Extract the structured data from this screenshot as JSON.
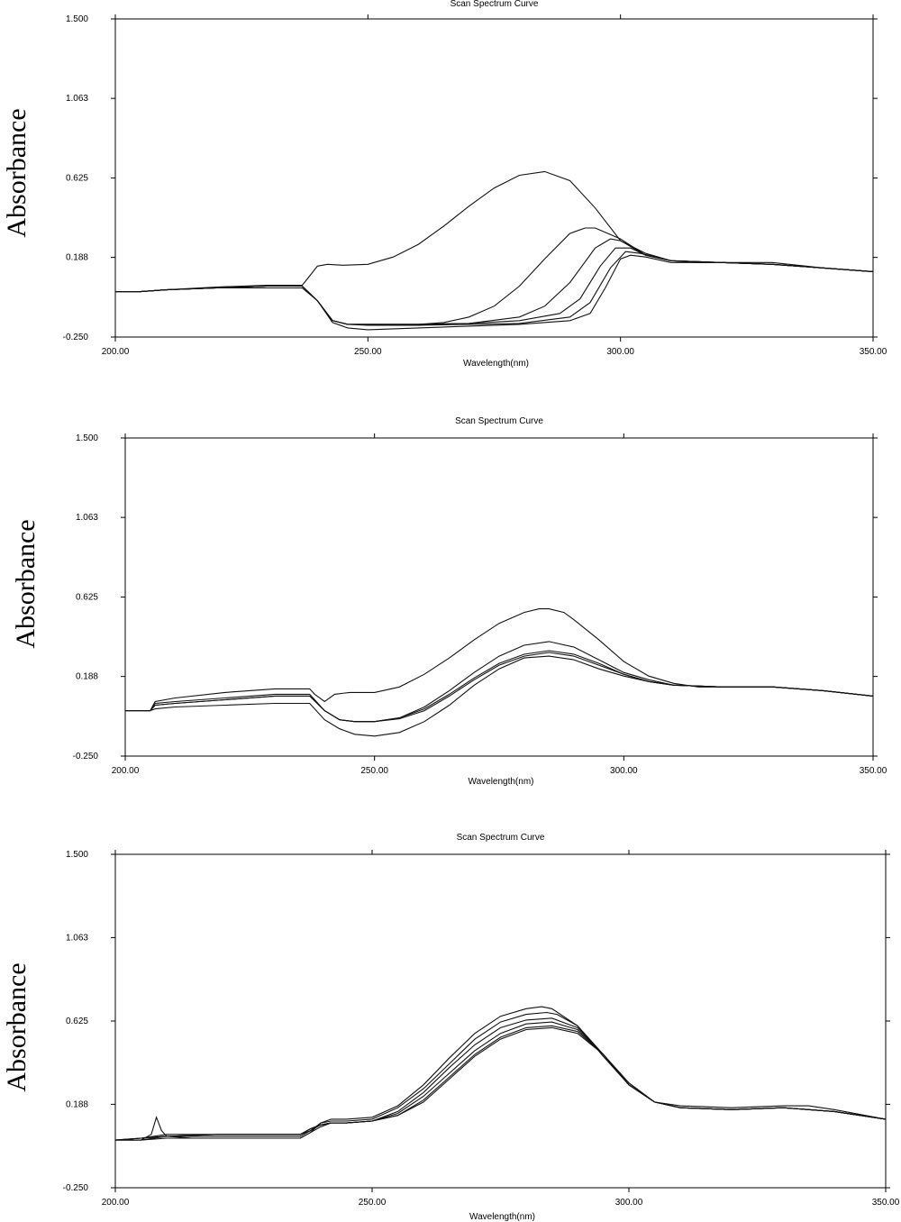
{
  "chart_data": [
    {
      "type": "line",
      "title": "Scan Spectrum Curve",
      "xlabel": "Wavelength(nm)",
      "ylabel": "Absorbance",
      "xlim": [
        200,
        350
      ],
      "ylim": [
        -0.25,
        1.5
      ],
      "xticks": [
        "200.00",
        "250.00",
        "300.00",
        "350.00"
      ],
      "yticks": [
        "1.500",
        "1.063",
        "0.625",
        "0.188",
        "-0.250"
      ],
      "grid": false,
      "series": [
        {
          "x": [
            200,
            205,
            210,
            220,
            230,
            237,
            238,
            240,
            242,
            245,
            250,
            255,
            260,
            265,
            270,
            275,
            280,
            285,
            290,
            295,
            300,
            305,
            310,
            315,
            320,
            330,
            340,
            350
          ],
          "y": [
            0.0,
            0.0,
            0.01,
            0.025,
            0.035,
            0.035,
            0.07,
            0.14,
            0.15,
            0.145,
            0.15,
            0.19,
            0.26,
            0.36,
            0.47,
            0.57,
            0.64,
            0.66,
            0.61,
            0.46,
            0.28,
            0.2,
            0.17,
            0.16,
            0.16,
            0.16,
            0.13,
            0.11
          ]
        },
        {
          "x": [
            200,
            205,
            210,
            220,
            230,
            237,
            240,
            243,
            246,
            250,
            255,
            260,
            265,
            270,
            275,
            280,
            285,
            290,
            293,
            295,
            300,
            305,
            310,
            320,
            330,
            340,
            350
          ],
          "y": [
            0.0,
            0.0,
            0.01,
            0.02,
            0.03,
            0.03,
            -0.05,
            -0.16,
            -0.18,
            -0.18,
            -0.18,
            -0.18,
            -0.17,
            -0.14,
            -0.08,
            0.03,
            0.18,
            0.32,
            0.35,
            0.35,
            0.29,
            0.2,
            0.17,
            0.16,
            0.15,
            0.13,
            0.11
          ]
        },
        {
          "x": [
            200,
            205,
            210,
            220,
            230,
            237,
            240,
            243,
            246,
            250,
            260,
            270,
            280,
            285,
            290,
            295,
            298,
            300,
            305,
            310,
            320,
            330,
            340,
            350
          ],
          "y": [
            0.0,
            0.0,
            0.01,
            0.02,
            0.03,
            0.03,
            -0.05,
            -0.16,
            -0.18,
            -0.18,
            -0.18,
            -0.175,
            -0.14,
            -0.08,
            0.05,
            0.24,
            0.29,
            0.28,
            0.21,
            0.17,
            0.16,
            0.15,
            0.13,
            0.11
          ]
        },
        {
          "x": [
            200,
            205,
            210,
            220,
            230,
            237,
            240,
            243,
            246,
            250,
            260,
            270,
            280,
            288,
            292,
            296,
            299,
            302,
            305,
            310,
            320,
            330,
            340,
            350
          ],
          "y": [
            0.0,
            0.0,
            0.01,
            0.02,
            0.03,
            0.03,
            -0.05,
            -0.16,
            -0.18,
            -0.18,
            -0.18,
            -0.175,
            -0.16,
            -0.12,
            -0.04,
            0.14,
            0.24,
            0.24,
            0.2,
            0.17,
            0.16,
            0.15,
            0.13,
            0.11
          ]
        },
        {
          "x": [
            200,
            205,
            210,
            220,
            230,
            237,
            240,
            243,
            246,
            250,
            260,
            270,
            280,
            290,
            294,
            298,
            301,
            304,
            310,
            320,
            330,
            340,
            350
          ],
          "y": [
            0.0,
            0.0,
            0.01,
            0.02,
            0.03,
            0.03,
            -0.05,
            -0.16,
            -0.18,
            -0.185,
            -0.185,
            -0.18,
            -0.175,
            -0.14,
            -0.06,
            0.13,
            0.22,
            0.21,
            0.17,
            0.16,
            0.15,
            0.13,
            0.11
          ]
        },
        {
          "x": [
            200,
            205,
            210,
            220,
            230,
            237,
            240,
            243,
            246,
            250,
            255,
            260,
            270,
            280,
            290,
            294,
            297,
            300,
            302,
            305,
            310,
            320,
            330,
            340,
            350
          ],
          "y": [
            0.0,
            0.0,
            0.01,
            0.02,
            0.02,
            0.02,
            -0.05,
            -0.17,
            -0.2,
            -0.21,
            -0.205,
            -0.2,
            -0.19,
            -0.18,
            -0.16,
            -0.12,
            0.02,
            0.18,
            0.2,
            0.19,
            0.16,
            0.16,
            0.15,
            0.13,
            0.11
          ]
        }
      ]
    },
    {
      "type": "line",
      "title": "Scan Spectrum Curve",
      "xlabel": "Wavelength(nm)",
      "ylabel": "Absorbance",
      "xlim": [
        200,
        350
      ],
      "ylim": [
        -0.25,
        1.5
      ],
      "xticks": [
        "200.00",
        "250.00",
        "300.00",
        "350.00"
      ],
      "yticks": [
        "1.500",
        "1.063",
        "0.625",
        "0.188",
        "-0.250"
      ],
      "grid": false,
      "series": [
        {
          "x": [
            200,
            205,
            206,
            210,
            220,
            230,
            237,
            238,
            240,
            242,
            245,
            250,
            255,
            260,
            265,
            270,
            275,
            280,
            283,
            285,
            288,
            290,
            295,
            300,
            305,
            310,
            315,
            320,
            330,
            340,
            350
          ],
          "y": [
            0.0,
            0.0,
            0.05,
            0.07,
            0.1,
            0.12,
            0.12,
            0.09,
            0.05,
            0.09,
            0.1,
            0.1,
            0.13,
            0.2,
            0.29,
            0.39,
            0.48,
            0.54,
            0.56,
            0.56,
            0.54,
            0.5,
            0.39,
            0.27,
            0.19,
            0.15,
            0.13,
            0.13,
            0.13,
            0.11,
            0.08
          ]
        },
        {
          "x": [
            200,
            205,
            206,
            210,
            220,
            230,
            237,
            240,
            243,
            246,
            250,
            255,
            260,
            265,
            270,
            275,
            280,
            285,
            290,
            295,
            300,
            305,
            310,
            320,
            330,
            340,
            350
          ],
          "y": [
            0.0,
            0.0,
            0.04,
            0.05,
            0.07,
            0.09,
            0.09,
            0.0,
            -0.05,
            -0.06,
            -0.06,
            -0.04,
            0.02,
            0.11,
            0.21,
            0.3,
            0.36,
            0.38,
            0.35,
            0.28,
            0.21,
            0.17,
            0.14,
            0.13,
            0.13,
            0.11,
            0.08
          ]
        },
        {
          "x": [
            200,
            205,
            206,
            210,
            220,
            230,
            237,
            240,
            243,
            246,
            250,
            255,
            260,
            265,
            270,
            275,
            280,
            285,
            290,
            295,
            300,
            305,
            310,
            320,
            330,
            340,
            350
          ],
          "y": [
            0.0,
            0.0,
            0.03,
            0.04,
            0.06,
            0.08,
            0.08,
            0.0,
            -0.05,
            -0.06,
            -0.06,
            -0.04,
            0.01,
            0.09,
            0.18,
            0.26,
            0.31,
            0.33,
            0.31,
            0.26,
            0.2,
            0.16,
            0.14,
            0.13,
            0.13,
            0.11,
            0.08
          ]
        },
        {
          "x": [
            200,
            205,
            206,
            210,
            220,
            230,
            237,
            240,
            243,
            246,
            250,
            255,
            260,
            265,
            270,
            275,
            280,
            285,
            290,
            295,
            300,
            305,
            310,
            320,
            330,
            340,
            350
          ],
          "y": [
            0.0,
            0.0,
            0.03,
            0.04,
            0.06,
            0.08,
            0.08,
            0.0,
            -0.05,
            -0.06,
            -0.06,
            -0.045,
            0.0,
            0.08,
            0.17,
            0.25,
            0.3,
            0.32,
            0.3,
            0.25,
            0.2,
            0.16,
            0.14,
            0.13,
            0.13,
            0.11,
            0.08
          ]
        },
        {
          "x": [
            200,
            205,
            206,
            210,
            220,
            230,
            237,
            240,
            243,
            246,
            250,
            255,
            260,
            265,
            270,
            275,
            280,
            285,
            290,
            295,
            300,
            305,
            310,
            320,
            330,
            340,
            350
          ],
          "y": [
            0.0,
            0.0,
            0.01,
            0.02,
            0.03,
            0.04,
            0.04,
            -0.05,
            -0.1,
            -0.13,
            -0.14,
            -0.12,
            -0.06,
            0.03,
            0.14,
            0.23,
            0.29,
            0.3,
            0.28,
            0.23,
            0.19,
            0.16,
            0.14,
            0.13,
            0.13,
            0.11,
            0.08
          ]
        }
      ]
    },
    {
      "type": "line",
      "title": "Scan Spectrum Curve",
      "xlabel": "Wavelength(nm)",
      "ylabel": "Absorbance",
      "xlim": [
        200,
        350
      ],
      "ylim": [
        -0.25,
        1.5
      ],
      "xticks": [
        "200.00",
        "250.00",
        "300.00",
        "350.00"
      ],
      "yticks": [
        "1.500",
        "1.063",
        "0.625",
        "0.188",
        "-0.250"
      ],
      "grid": false,
      "series": [
        {
          "x": [
            200,
            205,
            207,
            208,
            209,
            210,
            215,
            220,
            230,
            236,
            238,
            240,
            242,
            245,
            250,
            255,
            260,
            265,
            270,
            275,
            280,
            283,
            285,
            290,
            295,
            300,
            305,
            310,
            320,
            330,
            335,
            340,
            350
          ],
          "y": [
            0.0,
            0.0,
            0.03,
            0.12,
            0.05,
            0.02,
            0.01,
            0.01,
            0.01,
            0.01,
            0.04,
            0.09,
            0.11,
            0.11,
            0.12,
            0.18,
            0.29,
            0.43,
            0.56,
            0.65,
            0.69,
            0.7,
            0.69,
            0.6,
            0.44,
            0.29,
            0.2,
            0.18,
            0.17,
            0.18,
            0.18,
            0.16,
            0.11
          ]
        },
        {
          "x": [
            200,
            205,
            210,
            220,
            230,
            236,
            238,
            240,
            242,
            245,
            250,
            255,
            260,
            265,
            270,
            275,
            280,
            284,
            286,
            290,
            295,
            300,
            305,
            310,
            320,
            330,
            340,
            350
          ],
          "y": [
            0.0,
            0.01,
            0.02,
            0.02,
            0.02,
            0.02,
            0.05,
            0.09,
            0.1,
            0.1,
            0.11,
            0.17,
            0.27,
            0.4,
            0.53,
            0.62,
            0.66,
            0.67,
            0.66,
            0.6,
            0.45,
            0.29,
            0.2,
            0.17,
            0.16,
            0.17,
            0.15,
            0.11
          ]
        },
        {
          "x": [
            200,
            205,
            210,
            220,
            230,
            236,
            238,
            240,
            242,
            245,
            250,
            255,
            260,
            265,
            270,
            275,
            280,
            285,
            290,
            295,
            300,
            305,
            310,
            320,
            330,
            340,
            350
          ],
          "y": [
            0.0,
            0.01,
            0.02,
            0.03,
            0.03,
            0.03,
            0.06,
            0.08,
            0.09,
            0.09,
            0.1,
            0.15,
            0.25,
            0.38,
            0.5,
            0.59,
            0.63,
            0.64,
            0.59,
            0.45,
            0.29,
            0.2,
            0.17,
            0.16,
            0.17,
            0.15,
            0.11
          ]
        },
        {
          "x": [
            200,
            205,
            210,
            220,
            230,
            236,
            238,
            240,
            242,
            245,
            250,
            255,
            260,
            265,
            270,
            275,
            280,
            285,
            290,
            295,
            300,
            305,
            310,
            320,
            330,
            340,
            350
          ],
          "y": [
            0.0,
            0.01,
            0.03,
            0.03,
            0.03,
            0.03,
            0.06,
            0.08,
            0.09,
            0.09,
            0.1,
            0.14,
            0.23,
            0.35,
            0.47,
            0.56,
            0.61,
            0.62,
            0.58,
            0.45,
            0.29,
            0.2,
            0.17,
            0.16,
            0.17,
            0.15,
            0.11
          ]
        },
        {
          "x": [
            200,
            205,
            210,
            220,
            230,
            236,
            238,
            240,
            242,
            245,
            250,
            255,
            260,
            265,
            270,
            275,
            280,
            285,
            290,
            295,
            300,
            305,
            310,
            320,
            330,
            340,
            350
          ],
          "y": [
            0.0,
            0.0,
            0.02,
            0.03,
            0.03,
            0.03,
            0.05,
            0.08,
            0.09,
            0.09,
            0.1,
            0.13,
            0.21,
            0.33,
            0.45,
            0.54,
            0.59,
            0.6,
            0.57,
            0.45,
            0.3,
            0.2,
            0.17,
            0.16,
            0.17,
            0.15,
            0.11
          ]
        },
        {
          "x": [
            200,
            205,
            210,
            220,
            230,
            236,
            238,
            240,
            242,
            245,
            250,
            255,
            260,
            265,
            270,
            275,
            280,
            285,
            290,
            295,
            300,
            305,
            310,
            320,
            330,
            340,
            350
          ],
          "y": [
            0.0,
            0.0,
            0.01,
            0.01,
            0.01,
            0.01,
            0.04,
            0.07,
            0.09,
            0.09,
            0.1,
            0.13,
            0.2,
            0.32,
            0.44,
            0.53,
            0.58,
            0.59,
            0.56,
            0.45,
            0.3,
            0.2,
            0.17,
            0.16,
            0.17,
            0.15,
            0.11
          ]
        }
      ]
    }
  ]
}
